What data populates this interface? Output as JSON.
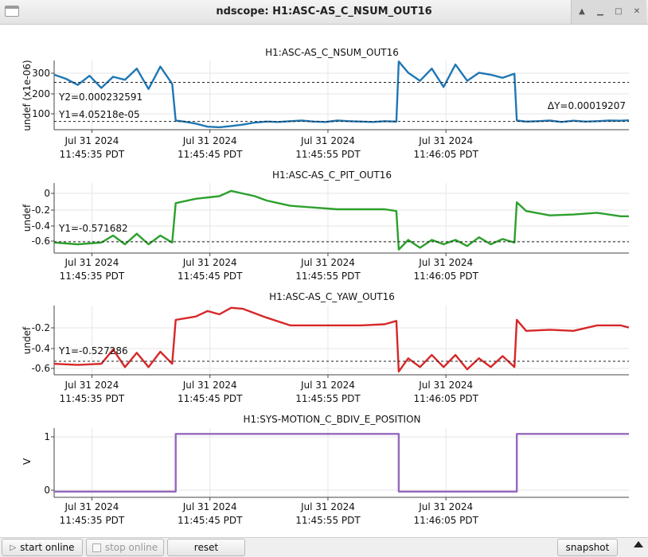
{
  "window": {
    "title": "ndscope: H1:ASC-AS_C_NSUM_OUT16"
  },
  "x_tick_dates": [
    "Jul 31 2024",
    "Jul 31 2024",
    "Jul 31 2024",
    "Jul 31 2024"
  ],
  "x_tick_times": [
    "11:45:35 PDT",
    "11:45:45 PDT",
    "11:45:55 PDT",
    "11:46:05 PDT"
  ],
  "plots": [
    {
      "title": "H1:ASC-AS_C_NSUM_OUT16",
      "ylabel": "undef (x1e-06)",
      "yticks": [
        "300",
        "200",
        "100"
      ],
      "color": "#1f77b4",
      "cursors": [
        "Y2=0.000232591",
        "Y1=4.05218e-05",
        "ΔY=0.00019207"
      ]
    },
    {
      "title": "H1:ASC-AS_C_PIT_OUT16",
      "ylabel": "undef",
      "yticks": [
        "0",
        "-0.2",
        "-0.4",
        "-0.6"
      ],
      "color": "#2ca02c",
      "cursors": [
        "Y1=-0.571682"
      ]
    },
    {
      "title": "H1:ASC-AS_C_YAW_OUT16",
      "ylabel": "undef",
      "yticks": [
        "-0.2",
        "-0.4",
        "-0.6"
      ],
      "color": "#d62728",
      "cursors": [
        "Y1=-0.527286"
      ]
    },
    {
      "title": "H1:SYS-MOTION_C_BDIV_E_POSITION",
      "ylabel": "V",
      "yticks": [
        "1",
        "0"
      ],
      "color": "#9467bd",
      "cursors": []
    }
  ],
  "chart_data": [
    {
      "type": "line",
      "title": "H1:ASC-AS_C_NSUM_OUT16",
      "ylabel": "undef (x1e-06)",
      "x_unit": "s after 11:45:30 PDT",
      "ylim": [
        0,
        340
      ],
      "y_cursors": [
        232.591,
        40.5218
      ],
      "series": [
        {
          "name": "H1:ASC-AS_C_NSUM_OUT16",
          "x": [
            0,
            1,
            2,
            3,
            4,
            5,
            6,
            7,
            8,
            9,
            10,
            10.3,
            11,
            12,
            13,
            14,
            15,
            16,
            17,
            18,
            19,
            20,
            21,
            22,
            23,
            24,
            25,
            26,
            27,
            28,
            29,
            29.2,
            30,
            31,
            32,
            33,
            34,
            35,
            36,
            37,
            38,
            39,
            39.2,
            40,
            41,
            42,
            43,
            44,
            45,
            46,
            47,
            48,
            48.7
          ],
          "y": [
            270,
            250,
            220,
            265,
            205,
            260,
            245,
            300,
            200,
            310,
            225,
            45,
            40,
            30,
            15,
            12,
            18,
            25,
            35,
            40,
            38,
            42,
            45,
            40,
            38,
            45,
            42,
            40,
            38,
            42,
            40,
            335,
            280,
            240,
            300,
            210,
            320,
            240,
            280,
            270,
            255,
            275,
            45,
            40,
            42,
            45,
            38,
            44,
            40,
            42,
            45,
            44,
            46
          ]
        }
      ]
    },
    {
      "type": "line",
      "title": "H1:ASC-AS_C_PIT_OUT16",
      "ylabel": "undef",
      "x_unit": "s after 11:45:30 PDT",
      "ylim": [
        -0.7,
        0.1
      ],
      "y_cursors": [
        -0.571682
      ],
      "series": [
        {
          "name": "H1:ASC-AS_C_PIT_OUT16",
          "x": [
            0,
            2,
            4,
            5,
            6,
            7,
            8,
            9,
            10,
            10.3,
            12,
            14,
            15,
            17,
            18,
            20,
            22,
            24,
            26,
            28,
            29,
            29.2,
            30,
            31,
            32,
            33,
            34,
            35,
            36,
            37,
            38,
            39,
            39.2,
            40,
            42,
            44,
            46,
            48,
            48.7
          ],
          "y": [
            -0.58,
            -0.6,
            -0.58,
            -0.5,
            -0.6,
            -0.48,
            -0.6,
            -0.5,
            -0.58,
            -0.13,
            -0.08,
            -0.05,
            0.01,
            -0.05,
            -0.1,
            -0.16,
            -0.18,
            -0.2,
            -0.2,
            -0.2,
            -0.22,
            -0.66,
            -0.55,
            -0.64,
            -0.55,
            -0.6,
            -0.55,
            -0.62,
            -0.52,
            -0.6,
            -0.54,
            -0.58,
            -0.12,
            -0.22,
            -0.27,
            -0.26,
            -0.24,
            -0.28,
            -0.28
          ]
        }
      ]
    },
    {
      "type": "line",
      "title": "H1:ASC-AS_C_YAW_OUT16",
      "ylabel": "undef",
      "x_unit": "s after 11:45:30 PDT",
      "ylim": [
        -0.65,
        -0.02
      ],
      "y_cursors": [
        -0.527286
      ],
      "series": [
        {
          "name": "H1:ASC-AS_C_YAW_OUT16",
          "x": [
            0,
            2,
            4,
            5,
            6,
            7,
            8,
            9,
            10,
            10.3,
            12,
            13,
            14,
            15,
            16,
            18,
            20,
            22,
            24,
            26,
            28,
            29,
            29.2,
            30,
            31,
            32,
            33,
            34,
            35,
            36,
            37,
            38,
            39,
            39.2,
            40,
            42,
            44,
            46,
            48,
            48.7
          ],
          "y": [
            -0.55,
            -0.56,
            -0.55,
            -0.42,
            -0.58,
            -0.45,
            -0.58,
            -0.44,
            -0.55,
            -0.15,
            -0.12,
            -0.07,
            -0.1,
            -0.04,
            -0.05,
            -0.13,
            -0.2,
            -0.2,
            -0.2,
            -0.2,
            -0.19,
            -0.16,
            -0.62,
            -0.5,
            -0.58,
            -0.47,
            -0.58,
            -0.47,
            -0.6,
            -0.5,
            -0.58,
            -0.48,
            -0.58,
            -0.15,
            -0.25,
            -0.24,
            -0.25,
            -0.2,
            -0.2,
            -0.22
          ]
        }
      ]
    },
    {
      "type": "line",
      "title": "H1:SYS-MOTION_C_BDIV_E_POSITION",
      "ylabel": "V",
      "x_unit": "s after 11:45:30 PDT",
      "ylim": [
        -0.1,
        1.1
      ],
      "series": [
        {
          "name": "H1:SYS-MOTION_C_BDIV_E_POSITION",
          "x": [
            0,
            10.3,
            10.3,
            29.2,
            29.2,
            39.2,
            39.2,
            48.7
          ],
          "y": [
            0,
            0,
            1,
            1,
            0,
            0,
            1,
            1
          ]
        }
      ]
    }
  ],
  "buttons": {
    "start_online": "start online",
    "stop_online": "stop online",
    "reset": "reset",
    "snapshot": "snapshot"
  }
}
